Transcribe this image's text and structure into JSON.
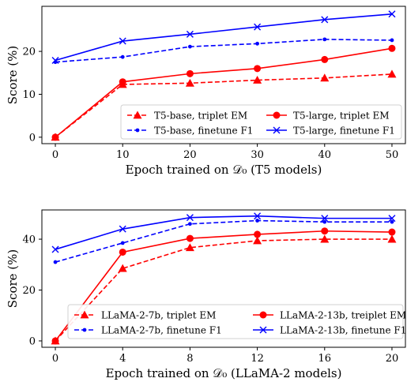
{
  "chart_data": [
    {
      "type": "line",
      "x": [
        0,
        10,
        20,
        30,
        40,
        50
      ],
      "xticks": [
        0,
        10,
        20,
        30,
        40,
        50
      ],
      "xlim": [
        -2,
        52
      ],
      "yticks": [
        0,
        10,
        20
      ],
      "ylim": [
        -1.5,
        30.5
      ],
      "xlabel": "Epoch trained on 𝒟₀ (T5 models)",
      "ylabel": "Score (%)",
      "legend_placement": "lower-right",
      "legend_columns": 2,
      "grid": false,
      "series": [
        {
          "name": "T5-base, triplet EM",
          "values": [
            0,
            12.3,
            12.6,
            13.3,
            13.8,
            14.7
          ],
          "color": "#ff0000",
          "dash": "dashed",
          "marker": "triangle"
        },
        {
          "name": "T5-large, triplet EM",
          "values": [
            0,
            12.9,
            14.8,
            16.0,
            18.1,
            20.7
          ],
          "color": "#ff0000",
          "dash": "solid",
          "marker": "circle"
        },
        {
          "name": "T5-base, finetune F1",
          "values": [
            17.5,
            18.7,
            21.1,
            21.8,
            22.8,
            22.6
          ],
          "color": "#0000ff",
          "dash": "dashed",
          "marker": "dot"
        },
        {
          "name": "T5-large, finetune F1",
          "values": [
            17.9,
            22.4,
            24.0,
            25.7,
            27.4,
            28.7
          ],
          "color": "#0000ff",
          "dash": "solid",
          "marker": "x"
        }
      ]
    },
    {
      "type": "line",
      "x": [
        0,
        4,
        8,
        12,
        16,
        20
      ],
      "xticks": [
        0,
        4,
        8,
        12,
        16,
        20
      ],
      "xlim": [
        -0.8,
        20.8
      ],
      "yticks": [
        0,
        20,
        40
      ],
      "ylim": [
        -2.5,
        51.5
      ],
      "xlabel": "Epoch trained on 𝒟₀ (LLaMA-2 models)",
      "ylabel": "Score (%)",
      "legend_placement": "lower-right",
      "legend_columns": 2,
      "grid": false,
      "series": [
        {
          "name": "LLaMA-2-7b, triplet EM",
          "values": [
            0,
            28.5,
            36.7,
            39.4,
            40.0,
            40.0
          ],
          "color": "#ff0000",
          "dash": "dashed",
          "marker": "triangle"
        },
        {
          "name": "LLaMA-2-13b, treiplet EM",
          "values": [
            0,
            34.9,
            40.3,
            41.9,
            43.2,
            42.8
          ],
          "color": "#ff0000",
          "dash": "solid",
          "marker": "circle"
        },
        {
          "name": "LLaMA-2-7b, finetune F1",
          "values": [
            31.0,
            38.5,
            46.0,
            47.3,
            46.8,
            46.8
          ],
          "color": "#0000ff",
          "dash": "dashed",
          "marker": "dot"
        },
        {
          "name": "LLaMA-2-13b, finetune F1",
          "values": [
            36.0,
            44.0,
            48.5,
            49.1,
            48.2,
            48.2
          ],
          "color": "#0000ff",
          "dash": "solid",
          "marker": "x"
        }
      ]
    }
  ]
}
